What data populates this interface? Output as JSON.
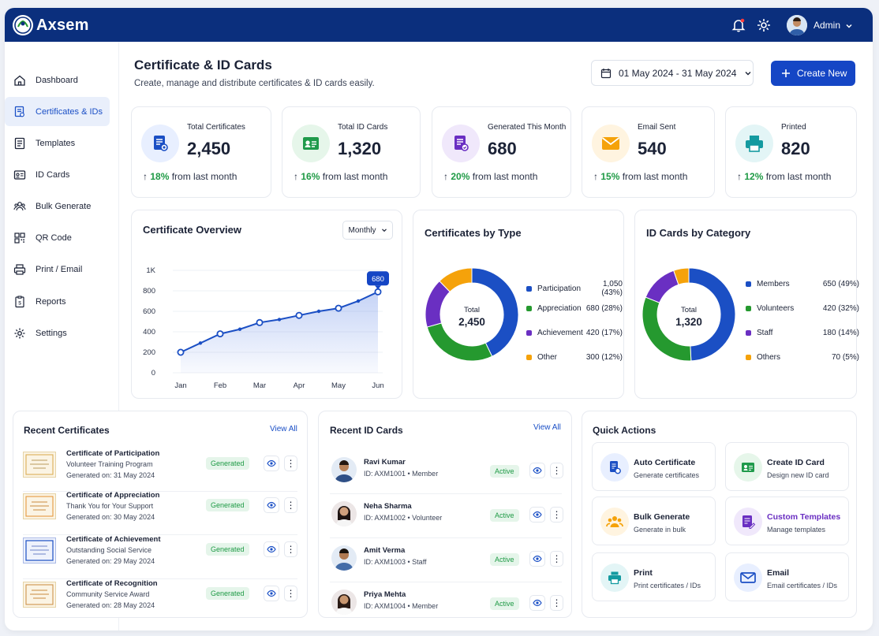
{
  "app": {
    "name": "Axsem"
  },
  "header": {
    "user": "Admin",
    "notification_icon": "bell-icon",
    "settings_icon": "gear-icon"
  },
  "sidebar": {
    "items": [
      {
        "label": "Dashboard",
        "icon": "home-icon"
      },
      {
        "label": "Certificates & IDs",
        "icon": "certificate-icon",
        "active": true
      },
      {
        "label": "Templates",
        "icon": "template-icon"
      },
      {
        "label": "ID Cards",
        "icon": "id-card-icon"
      },
      {
        "label": "Bulk Generate",
        "icon": "users-icon"
      },
      {
        "label": "QR Code",
        "icon": "qr-icon"
      },
      {
        "label": "Print / Email",
        "icon": "printer-icon"
      },
      {
        "label": "Reports",
        "icon": "report-icon"
      },
      {
        "label": "Settings",
        "icon": "gear-icon"
      }
    ]
  },
  "page": {
    "title": "Certificate & ID Cards",
    "subtitle": "Create, manage and distribute certificates & ID cards easily.",
    "date_range": "01 May 2024 - 31 May 2024",
    "create_label": "Create New"
  },
  "stats": [
    {
      "label": "Total Certificates",
      "value": "2,450",
      "change": "18%",
      "suffix": "from last month",
      "color": "#1b4fc4",
      "bg": "#e8efff"
    },
    {
      "label": "Total ID Cards",
      "value": "1,320",
      "change": "16%",
      "suffix": "from last month",
      "color": "#1f9a4b",
      "bg": "#e6f6ea"
    },
    {
      "label": "Generated This Month",
      "value": "680",
      "change": "20%",
      "suffix": "from last month",
      "color": "#6a2fc2",
      "bg": "#f0e8fb"
    },
    {
      "label": "Email Sent",
      "value": "540",
      "change": "15%",
      "suffix": "from last month",
      "color": "#f5a20a",
      "bg": "#fff4e0"
    },
    {
      "label": "Printed",
      "value": "820",
      "change": "12%",
      "suffix": "from last month",
      "color": "#149aa0",
      "bg": "#e3f5f6"
    }
  ],
  "overview": {
    "title": "Certificate Overview",
    "period": "Monthly"
  },
  "chart_data": [
    {
      "type": "area",
      "title": "Certificate Overview",
      "x": [
        "Jan",
        "",
        "Feb",
        "",
        "Mar",
        "",
        "Apr",
        "",
        "May",
        "",
        "Jun"
      ],
      "categories": [
        "Jan",
        "Feb",
        "Mar",
        "Apr",
        "May",
        "Jun"
      ],
      "values": [
        200,
        290,
        380,
        425,
        490,
        520,
        560,
        600,
        630,
        700,
        790
      ],
      "yticks": [
        "1K",
        "800",
        "600",
        "400",
        "200",
        "0"
      ],
      "ylim": [
        0,
        1000
      ],
      "annotation": "680",
      "grid": true
    },
    {
      "type": "pie",
      "title": "Certificates by Type",
      "center_label": "Total",
      "center_value": "2,450",
      "labels": [
        "Participation",
        "Appreciation",
        "Achievement",
        "Other"
      ],
      "values": [
        1050,
        680,
        420,
        300
      ],
      "display": [
        "1,050 (43%)",
        "680 (28%)",
        "420 (17%)",
        "300 (12%)"
      ],
      "colors": [
        "#1b4fc4",
        "#25992f",
        "#6a2fc2",
        "#f5a20a"
      ]
    },
    {
      "type": "pie",
      "title": "ID Cards by Category",
      "center_label": "Total",
      "center_value": "1,320",
      "labels": [
        "Members",
        "Volunteers",
        "Staff",
        "Others"
      ],
      "values": [
        650,
        420,
        180,
        70
      ],
      "display": [
        "650 (49%)",
        "420 (32%)",
        "180 (14%)",
        "70 (5%)"
      ],
      "colors": [
        "#1b4fc4",
        "#25992f",
        "#6a2fc2",
        "#f5a20a"
      ]
    }
  ],
  "recent_certificates": {
    "title": "Recent Certificates",
    "view_all": "View All",
    "items": [
      {
        "title": "Certificate of Participation",
        "desc": "Volunteer Training Program",
        "date": "Generated on: 31 May 2024",
        "status": "Generated"
      },
      {
        "title": "Certificate of Appreciation",
        "desc": "Thank You for Your Support",
        "date": "Generated on: 30 May 2024",
        "status": "Generated"
      },
      {
        "title": "Certificate of Achievement",
        "desc": "Outstanding Social Service",
        "date": "Generated on: 29 May 2024",
        "status": "Generated"
      },
      {
        "title": "Certificate of Recognition",
        "desc": "Community Service Award",
        "date": "Generated on: 28 May 2024",
        "status": "Generated"
      }
    ]
  },
  "recent_id_cards": {
    "title": "Recent ID Cards",
    "view_all": "View All",
    "items": [
      {
        "name": "Ravi Kumar",
        "sub": "ID: AXM1001 • Member",
        "status": "Active"
      },
      {
        "name": "Neha Sharma",
        "sub": "ID: AXM1002 • Volunteer",
        "status": "Active"
      },
      {
        "name": "Amit Verma",
        "sub": "ID: AXM1003 • Staff",
        "status": "Active"
      },
      {
        "name": "Priya Mehta",
        "sub": "ID: AXM1004 • Member",
        "status": "Active"
      }
    ]
  },
  "quick_actions": {
    "title": "Quick Actions",
    "items": [
      {
        "title": "Auto Certificate",
        "sub": "Generate certificates",
        "icon": "certificate-icon",
        "color": "#1b4fc4",
        "bg": "#e8efff"
      },
      {
        "title": "Create ID Card",
        "sub": "Design new ID card",
        "icon": "id-card-icon",
        "color": "#1f9a4b",
        "bg": "#e6f6ea"
      },
      {
        "title": "Bulk Generate",
        "sub": "Generate in bulk",
        "icon": "users-icon",
        "color": "#f5a20a",
        "bg": "#fff4e0"
      },
      {
        "title": "Custom Templates",
        "sub": "Manage templates",
        "icon": "template-icon",
        "color": "#6a2fc2",
        "bg": "#f0e8fb"
      },
      {
        "title": "Print",
        "sub": "Print certificates / IDs",
        "icon": "printer-icon",
        "color": "#149aa0",
        "bg": "#e3f5f6"
      },
      {
        "title": "Email",
        "sub": "Email certificates / IDs",
        "icon": "email-icon",
        "color": "#1b4fc4",
        "bg": "#e8efff"
      }
    ]
  }
}
